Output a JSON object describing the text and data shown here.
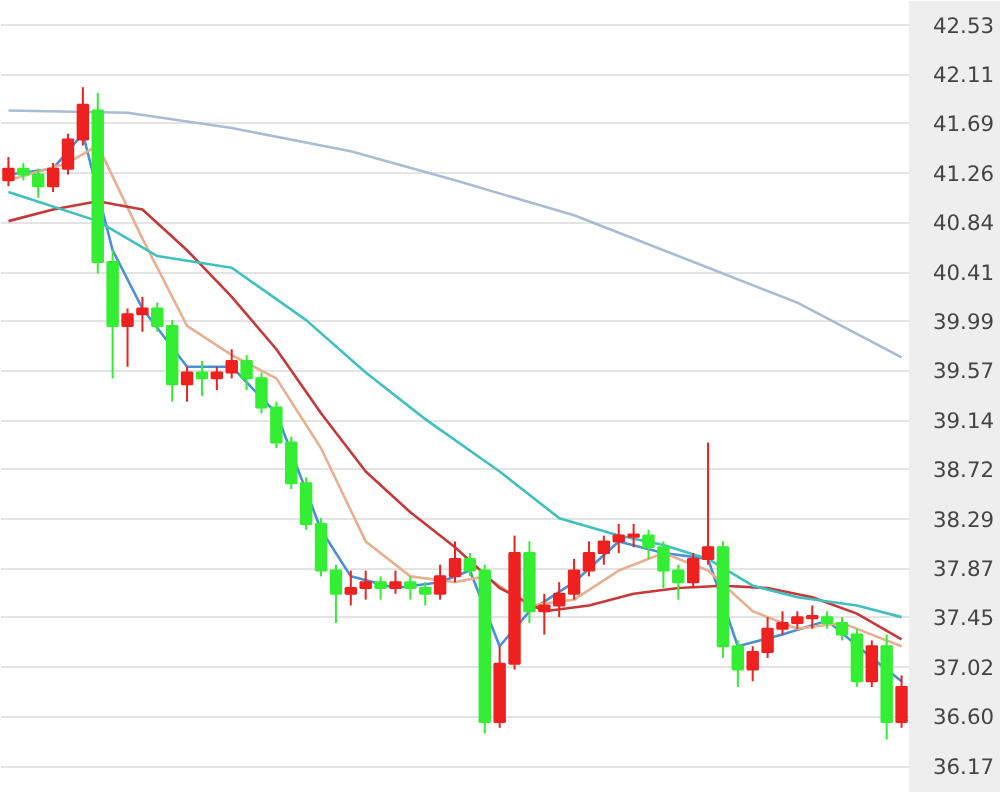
{
  "chart_data": {
    "type": "candlestick",
    "categories": [
      null,
      null,
      null,
      null,
      null,
      null,
      null,
      null,
      null,
      null,
      null,
      null,
      null,
      null,
      null,
      null,
      null,
      null,
      null,
      null,
      null,
      null,
      null,
      null,
      null,
      null,
      null,
      null,
      null,
      null,
      null,
      null,
      null,
      null,
      null,
      null,
      null,
      null,
      null,
      null,
      null,
      null,
      null,
      null,
      null,
      null,
      null,
      null,
      null,
      null,
      null,
      null,
      null,
      null,
      null,
      null,
      null,
      null,
      null,
      null,
      null
    ],
    "ohlc": [
      [
        41.2,
        41.4,
        41.15,
        41.3
      ],
      [
        41.3,
        41.35,
        41.2,
        41.25
      ],
      [
        41.25,
        41.3,
        41.05,
        41.15
      ],
      [
        41.15,
        41.35,
        41.1,
        41.3
      ],
      [
        41.3,
        41.6,
        41.25,
        41.55
      ],
      [
        41.55,
        42.0,
        41.5,
        41.85
      ],
      [
        41.8,
        41.95,
        40.4,
        40.5
      ],
      [
        40.5,
        40.6,
        39.5,
        39.95
      ],
      [
        39.95,
        40.1,
        39.6,
        40.05
      ],
      [
        40.05,
        40.2,
        39.9,
        40.1
      ],
      [
        40.1,
        40.15,
        39.9,
        39.95
      ],
      [
        39.95,
        40.0,
        39.3,
        39.45
      ],
      [
        39.45,
        39.6,
        39.3,
        39.55
      ],
      [
        39.55,
        39.65,
        39.35,
        39.5
      ],
      [
        39.5,
        39.6,
        39.4,
        39.55
      ],
      [
        39.55,
        39.75,
        39.5,
        39.65
      ],
      [
        39.65,
        39.7,
        39.4,
        39.5
      ],
      [
        39.5,
        39.55,
        39.2,
        39.25
      ],
      [
        39.25,
        39.3,
        38.9,
        38.95
      ],
      [
        38.95,
        39.0,
        38.55,
        38.6
      ],
      [
        38.6,
        38.65,
        38.2,
        38.25
      ],
      [
        38.25,
        38.3,
        37.8,
        37.85
      ],
      [
        37.85,
        37.9,
        37.4,
        37.65
      ],
      [
        37.65,
        37.85,
        37.55,
        37.7
      ],
      [
        37.7,
        37.85,
        37.6,
        37.75
      ],
      [
        37.75,
        37.8,
        37.6,
        37.7
      ],
      [
        37.7,
        37.85,
        37.65,
        37.75
      ],
      [
        37.75,
        37.8,
        37.6,
        37.7
      ],
      [
        37.7,
        37.75,
        37.55,
        37.65
      ],
      [
        37.65,
        37.9,
        37.6,
        37.8
      ],
      [
        37.8,
        38.1,
        37.75,
        37.95
      ],
      [
        37.95,
        38.0,
        37.8,
        37.85
      ],
      [
        37.85,
        37.9,
        36.45,
        36.55
      ],
      [
        36.55,
        37.2,
        36.5,
        37.05
      ],
      [
        37.05,
        38.15,
        37.0,
        38.0
      ],
      [
        38.0,
        38.1,
        37.4,
        37.5
      ],
      [
        37.5,
        37.65,
        37.3,
        37.55
      ],
      [
        37.55,
        37.75,
        37.45,
        37.65
      ],
      [
        37.65,
        37.95,
        37.6,
        37.85
      ],
      [
        37.85,
        38.1,
        37.8,
        38.0
      ],
      [
        38.0,
        38.15,
        37.9,
        38.1
      ],
      [
        38.1,
        38.25,
        38.0,
        38.15
      ],
      [
        38.15,
        38.25,
        38.05,
        38.15
      ],
      [
        38.15,
        38.2,
        37.95,
        38.05
      ],
      [
        38.05,
        38.1,
        37.7,
        37.85
      ],
      [
        37.85,
        37.9,
        37.6,
        37.75
      ],
      [
        37.75,
        38.0,
        37.7,
        37.95
      ],
      [
        37.95,
        38.95,
        37.9,
        38.05
      ],
      [
        38.05,
        38.1,
        37.1,
        37.2
      ],
      [
        37.2,
        37.25,
        36.85,
        37.0
      ],
      [
        37.0,
        37.2,
        36.9,
        37.15
      ],
      [
        37.15,
        37.45,
        37.1,
        37.35
      ],
      [
        37.35,
        37.5,
        37.3,
        37.4
      ],
      [
        37.4,
        37.5,
        37.35,
        37.45
      ],
      [
        37.45,
        37.55,
        37.35,
        37.45
      ],
      [
        37.45,
        37.5,
        37.35,
        37.4
      ],
      [
        37.4,
        37.45,
        37.25,
        37.3
      ],
      [
        37.3,
        37.35,
        36.85,
        36.9
      ],
      [
        36.9,
        37.25,
        36.85,
        37.2
      ],
      [
        37.2,
        37.3,
        36.4,
        36.55
      ],
      [
        36.55,
        36.95,
        36.5,
        36.85
      ]
    ],
    "colors": [
      "#ee2020",
      "#33ee33",
      "#33ee33",
      "#ee2020",
      "#ee2020",
      "#ee2020",
      "#33ee33",
      "#33ee33",
      "#ee2020",
      "#ee2020",
      "#33ee33",
      "#33ee33",
      "#ee2020",
      "#33ee33",
      "#ee2020",
      "#ee2020",
      "#33ee33",
      "#33ee33",
      "#33ee33",
      "#33ee33",
      "#33ee33",
      "#33ee33",
      "#33ee33",
      "#ee2020",
      "#ee2020",
      "#33ee33",
      "#ee2020",
      "#33ee33",
      "#33ee33",
      "#ee2020",
      "#ee2020",
      "#33ee33",
      "#33ee33",
      "#ee2020",
      "#ee2020",
      "#33ee33",
      "#ee2020",
      "#ee2020",
      "#ee2020",
      "#ee2020",
      "#ee2020",
      "#ee2020",
      "#ee2020",
      "#33ee33",
      "#33ee33",
      "#33ee33",
      "#ee2020",
      "#ee2020",
      "#33ee33",
      "#33ee33",
      "#ee2020",
      "#ee2020",
      "#ee2020",
      "#ee2020",
      "#ee2020",
      "#33ee33",
      "#33ee33",
      "#33ee33",
      "#ee2020",
      "#33ee33",
      "#ee2020"
    ],
    "series": [
      {
        "type": "line",
        "color": "#4a8fd8",
        "values": [
          41.25,
          null,
          null,
          41.3,
          null,
          41.6,
          null,
          40.6,
          null,
          40.1,
          null,
          null,
          39.6,
          null,
          null,
          39.6,
          null,
          null,
          39.2,
          null,
          null,
          38.2,
          null,
          37.8,
          null,
          null,
          37.7,
          null,
          null,
          37.75,
          null,
          37.85,
          null,
          37.2,
          null,
          37.5,
          null,
          null,
          37.75,
          null,
          null,
          38.1,
          null,
          null,
          38.0,
          null,
          null,
          37.95,
          null,
          37.2,
          null,
          null,
          37.3,
          null,
          null,
          37.42,
          null,
          null,
          37.1,
          null,
          36.9
        ]
      },
      {
        "type": "line",
        "color": "#e8b090",
        "values": [
          41.2,
          null,
          null,
          null,
          41.35,
          null,
          41.5,
          null,
          null,
          40.7,
          null,
          null,
          39.95,
          null,
          null,
          39.7,
          null,
          null,
          39.5,
          null,
          null,
          38.9,
          null,
          null,
          38.1,
          null,
          null,
          37.8,
          null,
          null,
          37.75,
          null,
          37.8,
          null,
          null,
          37.55,
          null,
          null,
          37.6,
          null,
          null,
          37.85,
          null,
          null,
          38.0,
          null,
          null,
          37.85,
          null,
          null,
          37.5,
          null,
          null,
          37.35,
          null,
          null,
          37.4,
          null,
          37.3,
          null,
          37.2
        ]
      },
      {
        "type": "line",
        "color": "#c83838",
        "values": [
          40.85,
          null,
          null,
          40.95,
          null,
          null,
          41.02,
          null,
          null,
          40.95,
          null,
          null,
          40.6,
          null,
          null,
          40.2,
          null,
          null,
          39.75,
          null,
          null,
          39.2,
          null,
          null,
          38.7,
          null,
          null,
          38.35,
          null,
          null,
          38.05,
          null,
          null,
          37.7,
          null,
          null,
          37.5,
          null,
          null,
          37.55,
          null,
          null,
          37.65,
          null,
          null,
          37.7,
          null,
          null,
          37.72,
          null,
          null,
          37.7,
          null,
          null,
          37.62,
          null,
          null,
          37.48,
          null,
          null,
          37.26
        ]
      },
      {
        "type": "line",
        "color": "#40c0c0",
        "values": [
          41.1,
          null,
          null,
          null,
          null,
          null,
          40.85,
          null,
          null,
          null,
          40.55,
          null,
          null,
          null,
          null,
          40.45,
          null,
          null,
          null,
          null,
          40.0,
          null,
          null,
          null,
          39.55,
          null,
          null,
          null,
          39.15,
          null,
          null,
          null,
          null,
          38.7,
          null,
          null,
          null,
          38.3,
          null,
          null,
          null,
          38.15,
          null,
          null,
          38.07,
          null,
          null,
          37.95,
          null,
          null,
          37.72,
          null,
          null,
          37.62,
          null,
          null,
          null,
          37.55,
          null,
          null,
          37.45
        ]
      },
      {
        "type": "line",
        "color": "#a8bcd4",
        "values": [
          41.8,
          null,
          null,
          null,
          null,
          null,
          null,
          null,
          41.78,
          null,
          null,
          null,
          null,
          null,
          null,
          41.65,
          null,
          null,
          null,
          null,
          null,
          null,
          null,
          41.45,
          null,
          null,
          null,
          null,
          null,
          null,
          41.2,
          null,
          null,
          null,
          null,
          null,
          null,
          null,
          40.9,
          null,
          null,
          null,
          null,
          null,
          null,
          40.55,
          null,
          null,
          null,
          null,
          null,
          null,
          null,
          40.15,
          null,
          null,
          null,
          null,
          null,
          null,
          39.68
        ]
      }
    ],
    "ylim": [
      35.94,
      42.74
    ],
    "yticks": [
      {
        "value": 42.53,
        "label": "42.53"
      },
      {
        "value": 42.11,
        "label": "42.11"
      },
      {
        "value": 41.69,
        "label": "41.69"
      },
      {
        "value": 41.26,
        "label": "41.26"
      },
      {
        "value": 40.84,
        "label": "40.84"
      },
      {
        "value": 40.41,
        "label": "40.41"
      },
      {
        "value": 39.99,
        "label": "39.99"
      },
      {
        "value": 39.57,
        "label": "39.57"
      },
      {
        "value": 39.14,
        "label": "39.14"
      },
      {
        "value": 38.72,
        "label": "38.72"
      },
      {
        "value": 38.29,
        "label": "38.29"
      },
      {
        "value": 37.87,
        "label": "37.87"
      },
      {
        "value": 37.45,
        "label": "37.45"
      },
      {
        "value": 37.02,
        "label": "37.02"
      },
      {
        "value": 36.6,
        "label": "36.60"
      },
      {
        "value": 36.17,
        "label": "36.17"
      }
    ],
    "grid": "y",
    "tick_labels": "y"
  }
}
